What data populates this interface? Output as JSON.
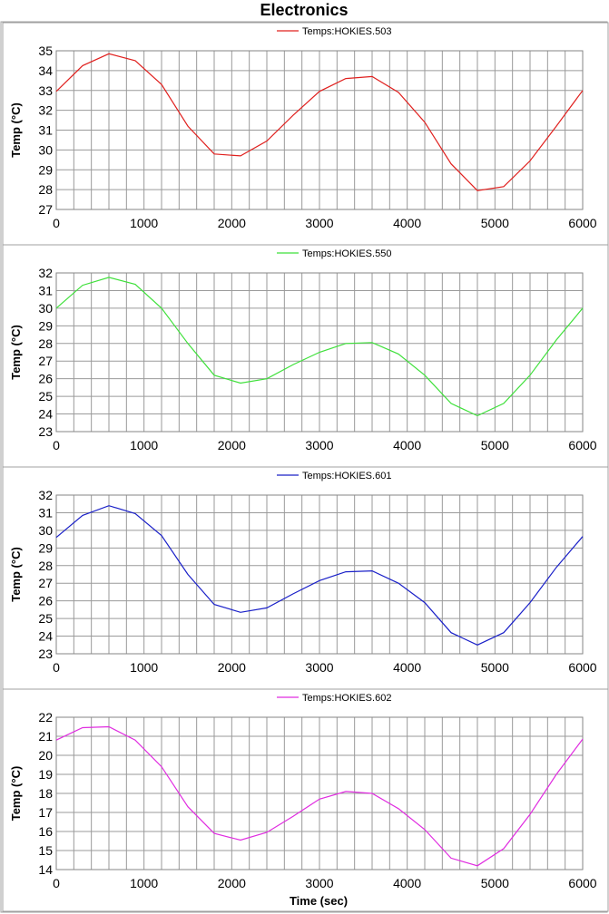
{
  "title": "Electronics",
  "xlabel": "Time (sec)",
  "chart_data": [
    {
      "type": "line",
      "title": "",
      "legend_position": "top-center",
      "xlabel": "",
      "ylabel": "Temp (°C)",
      "xlim": [
        0,
        6000
      ],
      "ylim": [
        27,
        35
      ],
      "xticks": [
        0,
        1000,
        2000,
        3000,
        4000,
        5000,
        6000
      ],
      "yticks": [
        27,
        28,
        29,
        30,
        31,
        32,
        33,
        34,
        35
      ],
      "grid": true,
      "series": [
        {
          "name": "Temps:HOKIES.503",
          "color": "#e0201e",
          "x": [
            0,
            300,
            600,
            900,
            1200,
            1500,
            1800,
            2100,
            2400,
            2700,
            3000,
            3300,
            3600,
            3900,
            4200,
            4500,
            4800,
            5100,
            5400,
            5700,
            6000
          ],
          "y": [
            32.95,
            34.25,
            34.85,
            34.5,
            33.3,
            31.2,
            29.8,
            29.7,
            30.45,
            31.75,
            32.95,
            33.6,
            33.7,
            32.9,
            31.4,
            29.3,
            27.95,
            28.15,
            29.45,
            31.2,
            33.0
          ]
        }
      ]
    },
    {
      "type": "line",
      "title": "",
      "legend_position": "top-center",
      "xlabel": "",
      "ylabel": "Temp (°C)",
      "xlim": [
        0,
        6000
      ],
      "ylim": [
        23,
        32
      ],
      "xticks": [
        0,
        1000,
        2000,
        3000,
        4000,
        5000,
        6000
      ],
      "yticks": [
        23,
        24,
        25,
        26,
        27,
        28,
        29,
        30,
        31,
        32
      ],
      "grid": true,
      "series": [
        {
          "name": "Temps:HOKIES.550",
          "color": "#3ee03a",
          "x": [
            0,
            300,
            600,
            900,
            1200,
            1500,
            1800,
            2100,
            2400,
            2700,
            3000,
            3300,
            3600,
            3900,
            4200,
            4500,
            4800,
            5100,
            5400,
            5700,
            6000
          ],
          "y": [
            30.0,
            31.3,
            31.75,
            31.35,
            30.0,
            28.0,
            26.2,
            25.75,
            26.0,
            26.8,
            27.5,
            28.0,
            28.05,
            27.4,
            26.2,
            24.6,
            23.9,
            24.6,
            26.2,
            28.2,
            30.0
          ]
        }
      ]
    },
    {
      "type": "line",
      "title": "",
      "legend_position": "top-center",
      "xlabel": "",
      "ylabel": "Temp (°C)",
      "xlim": [
        0,
        6000
      ],
      "ylim": [
        23,
        32
      ],
      "xticks": [
        0,
        1000,
        2000,
        3000,
        4000,
        5000,
        6000
      ],
      "yticks": [
        23,
        24,
        25,
        26,
        27,
        28,
        29,
        30,
        31,
        32
      ],
      "grid": true,
      "series": [
        {
          "name": "Temps:HOKIES.601",
          "color": "#1a20c8",
          "x": [
            0,
            300,
            600,
            900,
            1200,
            1500,
            1800,
            2100,
            2400,
            2700,
            3000,
            3300,
            3600,
            3900,
            4200,
            4500,
            4800,
            5100,
            5400,
            5700,
            6000
          ],
          "y": [
            29.6,
            30.85,
            31.4,
            30.95,
            29.7,
            27.5,
            25.8,
            25.35,
            25.6,
            26.4,
            27.15,
            27.65,
            27.7,
            27.0,
            25.9,
            24.2,
            23.5,
            24.2,
            25.9,
            27.9,
            29.65
          ]
        }
      ]
    },
    {
      "type": "line",
      "title": "",
      "legend_position": "top-center",
      "xlabel": "Time (sec)",
      "ylabel": "Temp (°C)",
      "xlim": [
        0,
        6000
      ],
      "ylim": [
        14,
        22
      ],
      "xticks": [
        0,
        1000,
        2000,
        3000,
        4000,
        5000,
        6000
      ],
      "yticks": [
        14,
        15,
        16,
        17,
        18,
        19,
        20,
        21,
        22
      ],
      "grid": true,
      "series": [
        {
          "name": "Temps:HOKIES.602",
          "color": "#e02ce0",
          "x": [
            0,
            300,
            600,
            900,
            1200,
            1500,
            1800,
            2100,
            2400,
            2700,
            3000,
            3300,
            3600,
            3900,
            4200,
            4500,
            4800,
            5100,
            5400,
            5700,
            6000
          ],
          "y": [
            20.8,
            21.45,
            21.5,
            20.8,
            19.4,
            17.3,
            15.9,
            15.55,
            15.95,
            16.8,
            17.7,
            18.1,
            18.0,
            17.2,
            16.1,
            14.6,
            14.2,
            15.1,
            16.9,
            19.0,
            20.85
          ]
        }
      ]
    }
  ]
}
